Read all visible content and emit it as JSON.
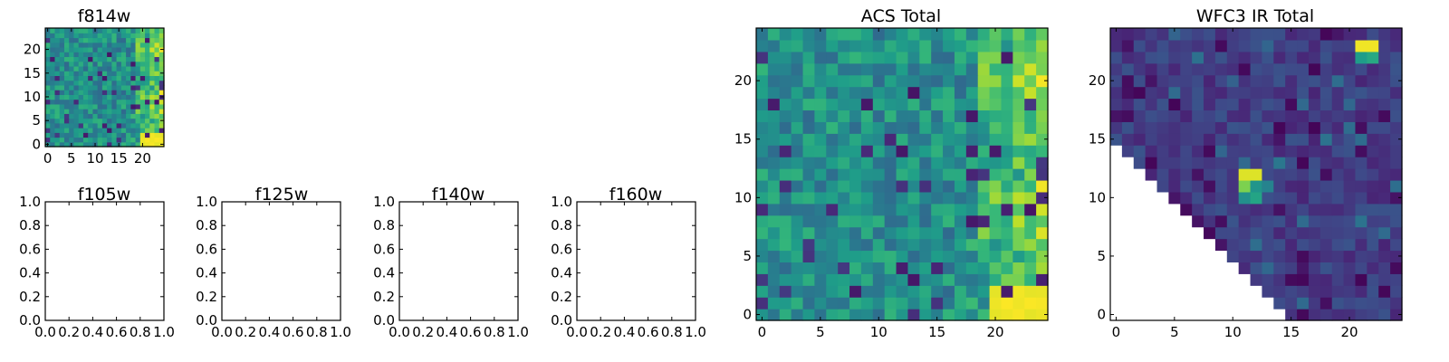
{
  "chart_data": [
    {
      "type": "heatmap",
      "id": "f814w",
      "title": "f814w",
      "colormap": "viridis",
      "range": [
        0,
        25
      ],
      "xticks": [
        0,
        5,
        10,
        15,
        20
      ],
      "yticks": [
        0,
        5,
        10,
        15,
        20
      ]
    },
    {
      "type": "line",
      "id": "f105w",
      "title": "f105w",
      "xlim": [
        0,
        1
      ],
      "ylim": [
        0,
        1
      ],
      "xticks": [
        "0.0",
        "0.2",
        "0.4",
        "0.6",
        "0.8",
        "1.0"
      ],
      "yticks": [
        "0.0",
        "0.2",
        "0.4",
        "0.6",
        "0.8",
        "1.0"
      ]
    },
    {
      "type": "line",
      "id": "f125w",
      "title": "f125w",
      "xlim": [
        0,
        1
      ],
      "ylim": [
        0,
        1
      ],
      "xticks": [
        "0.0",
        "0.2",
        "0.4",
        "0.6",
        "0.8",
        "1.0"
      ],
      "yticks": [
        "0.0",
        "0.2",
        "0.4",
        "0.6",
        "0.8",
        "1.0"
      ]
    },
    {
      "type": "line",
      "id": "f140w",
      "title": "f140w",
      "xlim": [
        0,
        1
      ],
      "ylim": [
        0,
        1
      ],
      "xticks": [
        "0.0",
        "0.2",
        "0.4",
        "0.6",
        "0.8",
        "1.0"
      ],
      "yticks": [
        "0.0",
        "0.2",
        "0.4",
        "0.6",
        "0.8",
        "1.0"
      ]
    },
    {
      "type": "line",
      "id": "f160w",
      "title": "f160w",
      "xlim": [
        0,
        1
      ],
      "ylim": [
        0,
        1
      ],
      "xticks": [
        "0.0",
        "0.2",
        "0.4",
        "0.6",
        "0.8",
        "1.0"
      ],
      "yticks": [
        "0.0",
        "0.2",
        "0.4",
        "0.6",
        "0.8",
        "1.0"
      ]
    },
    {
      "type": "heatmap",
      "id": "acs_total",
      "title": "ACS Total",
      "colormap": "viridis",
      "range": [
        0,
        25
      ],
      "xticks": [
        0,
        5,
        10,
        15,
        20
      ],
      "yticks": [
        0,
        5,
        10,
        15,
        20
      ]
    },
    {
      "type": "heatmap",
      "id": "wfc3_ir_total",
      "title": "WFC3 IR Total",
      "colormap": "viridis",
      "range": [
        0,
        25
      ],
      "masked_region": "lower-left triangle (no data)",
      "xticks": [
        0,
        5,
        10,
        15,
        20
      ],
      "yticks": [
        0,
        5,
        10,
        15,
        20
      ]
    }
  ]
}
